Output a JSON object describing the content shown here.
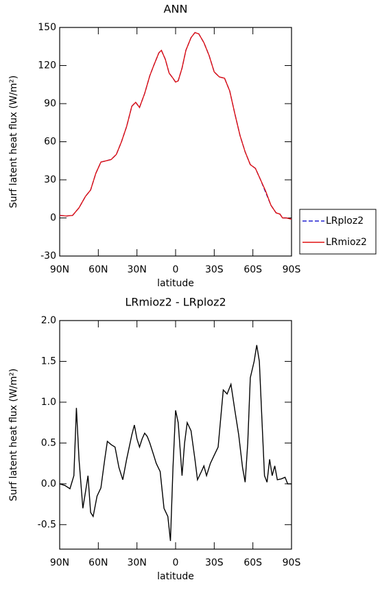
{
  "chart_data": [
    {
      "type": "line",
      "title": "ANN",
      "xlabel": "latitude",
      "ylabel": "Surf latent heat flux (W/m²)",
      "xlim": [
        90,
        -90
      ],
      "xticks": [
        {
          "value": 90,
          "label": "90N"
        },
        {
          "value": 60,
          "label": "60N"
        },
        {
          "value": 30,
          "label": "30N"
        },
        0,
        {
          "value": -30,
          "label": "30S"
        },
        {
          "value": -60,
          "label": "60S"
        },
        {
          "value": -90,
          "label": "90S"
        }
      ],
      "ylim": [
        -30,
        150
      ],
      "yticks": [
        -30,
        0,
        30,
        60,
        90,
        120,
        150
      ],
      "x": [
        90,
        85,
        80,
        75,
        70,
        66,
        62,
        58,
        54,
        50,
        46,
        42,
        38,
        34,
        31,
        28,
        24,
        20,
        17,
        13,
        11,
        8,
        5,
        2,
        0,
        -2,
        -5,
        -8,
        -12,
        -15,
        -18,
        -22,
        -26,
        -30,
        -34,
        -38,
        -42,
        -46,
        -50,
        -54,
        -58,
        -62,
        -66,
        -70,
        -74,
        -78,
        -81,
        -83,
        -86,
        -90
      ],
      "series": [
        {
          "name": "LRploz2",
          "color": "#1f1fd0",
          "style": "dashed",
          "values": [
            2,
            1.5,
            2,
            8,
            17,
            22,
            35,
            44,
            45,
            46,
            50,
            60,
            72,
            88,
            91,
            87,
            98,
            112,
            120,
            130,
            132,
            125,
            114,
            110,
            107,
            108,
            118,
            132,
            142,
            146,
            145,
            138,
            128,
            115,
            111,
            110,
            100,
            82,
            65,
            52,
            42,
            39,
            30,
            20,
            10,
            4,
            3,
            0,
            0,
            -1
          ]
        },
        {
          "name": "LRmioz2",
          "color": "#e01010",
          "style": "solid",
          "values": [
            2,
            1.5,
            2,
            8,
            17,
            22,
            35,
            44,
            45,
            46,
            50,
            60,
            72,
            88,
            91,
            87,
            98,
            112,
            120,
            130,
            132,
            125,
            114,
            110,
            107,
            108,
            118,
            132,
            142,
            146,
            145,
            138,
            128,
            115,
            111,
            110,
            100,
            82,
            65,
            52,
            42,
            39,
            30,
            21,
            10,
            4,
            3,
            0,
            0,
            -1
          ]
        }
      ]
    },
    {
      "type": "line",
      "title": "LRmioz2 - LRploz2",
      "xlabel": "latitude",
      "ylabel": "Surf latent heat flux (W/m²)",
      "xlim": [
        90,
        -90
      ],
      "xticks": [
        {
          "value": 90,
          "label": "90N"
        },
        {
          "value": 60,
          "label": "60N"
        },
        {
          "value": 30,
          "label": "30N"
        },
        0,
        {
          "value": -30,
          "label": "30S"
        },
        {
          "value": -60,
          "label": "60S"
        },
        {
          "value": -90,
          "label": "90S"
        }
      ],
      "ylim": [
        -0.8,
        2
      ],
      "yticks": [
        -0.5,
        {
          "value": 0,
          "label": "0.0"
        },
        0.5,
        {
          "value": 1,
          "label": "1.0"
        },
        1.5,
        {
          "value": 2,
          "label": "2.0"
        }
      ],
      "color": "#000000",
      "x": [
        90,
        86,
        82,
        79,
        77,
        75,
        72,
        70,
        68,
        66,
        64,
        61,
        58,
        55,
        53,
        50,
        47,
        44,
        41,
        38,
        34,
        32,
        30,
        28,
        26,
        24,
        22,
        20,
        17,
        15,
        12,
        9,
        6,
        4,
        2,
        0,
        -2,
        -5,
        -7,
        -9,
        -12,
        -15,
        -17,
        -20,
        -22,
        -24,
        -27,
        -30,
        -33,
        -37,
        -40,
        -43,
        -46,
        -49,
        -52,
        -54,
        -56,
        -58,
        -61,
        -63,
        -65,
        -67,
        -69,
        -71,
        -73,
        -75,
        -77,
        -79,
        -82,
        -85,
        -87,
        -90
      ],
      "values": [
        0,
        -0.02,
        -0.06,
        0.1,
        0.93,
        0.3,
        -0.3,
        -0.1,
        0.1,
        -0.35,
        -0.4,
        -0.15,
        -0.05,
        0.3,
        0.52,
        0.48,
        0.45,
        0.2,
        0.05,
        0.3,
        0.6,
        0.72,
        0.55,
        0.45,
        0.55,
        0.62,
        0.58,
        0.5,
        0.35,
        0.25,
        0.15,
        -0.3,
        -0.4,
        -0.7,
        0.2,
        0.9,
        0.75,
        0.1,
        0.5,
        0.75,
        0.65,
        0.3,
        0.05,
        0.15,
        0.22,
        0.1,
        0.25,
        0.35,
        0.45,
        1.15,
        1.1,
        1.22,
        0.9,
        0.6,
        0.2,
        0.02,
        0.5,
        1.3,
        1.5,
        1.7,
        1.5,
        0.8,
        0.1,
        0.02,
        0.3,
        0.1,
        0.22,
        0.05,
        0.06,
        0.08,
        0,
        0
      ]
    }
  ]
}
